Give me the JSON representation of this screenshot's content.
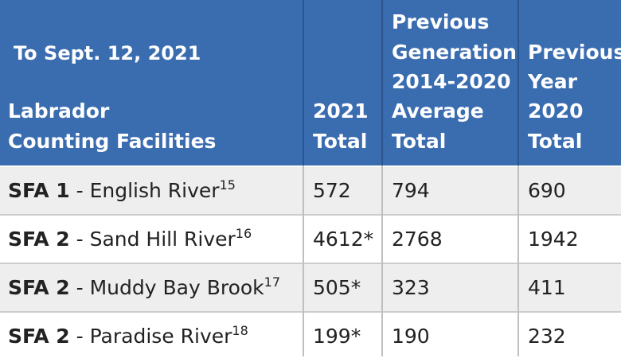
{
  "header": {
    "date_note": "To Sept. 12, 2021",
    "facility_col": [
      "Labrador",
      "Counting Facilities"
    ],
    "total_2021_col": [
      "2021",
      "Total"
    ],
    "prev_gen_col": [
      "Previous",
      "Generation",
      "2014-2020",
      "Average",
      "Total"
    ],
    "prev_year_col": [
      "Previous",
      "Year",
      "2020",
      "Total"
    ]
  },
  "rows": [
    {
      "sfa": "SFA 1",
      "river": " - English River",
      "footnote": "15",
      "total_2021": "572",
      "prev_gen_avg": "794",
      "prev_year": "690"
    },
    {
      "sfa": "SFA 2",
      "river": " - Sand Hill River",
      "footnote": "16",
      "total_2021": "4612*",
      "prev_gen_avg": "2768",
      "prev_year": "1942"
    },
    {
      "sfa": "SFA 2",
      "river": " - Muddy Bay Brook",
      "footnote": "17",
      "total_2021": "505*",
      "prev_gen_avg": "323",
      "prev_year": "411"
    },
    {
      "sfa": "SFA 2",
      "river": " - Paradise River",
      "footnote": "18",
      "total_2021": "199*",
      "prev_gen_avg": "190",
      "prev_year": "232"
    }
  ],
  "colors": {
    "header_bg": "#3a6cb0",
    "header_text": "#ffffff",
    "row_alt_bg": "#eeeeee"
  }
}
